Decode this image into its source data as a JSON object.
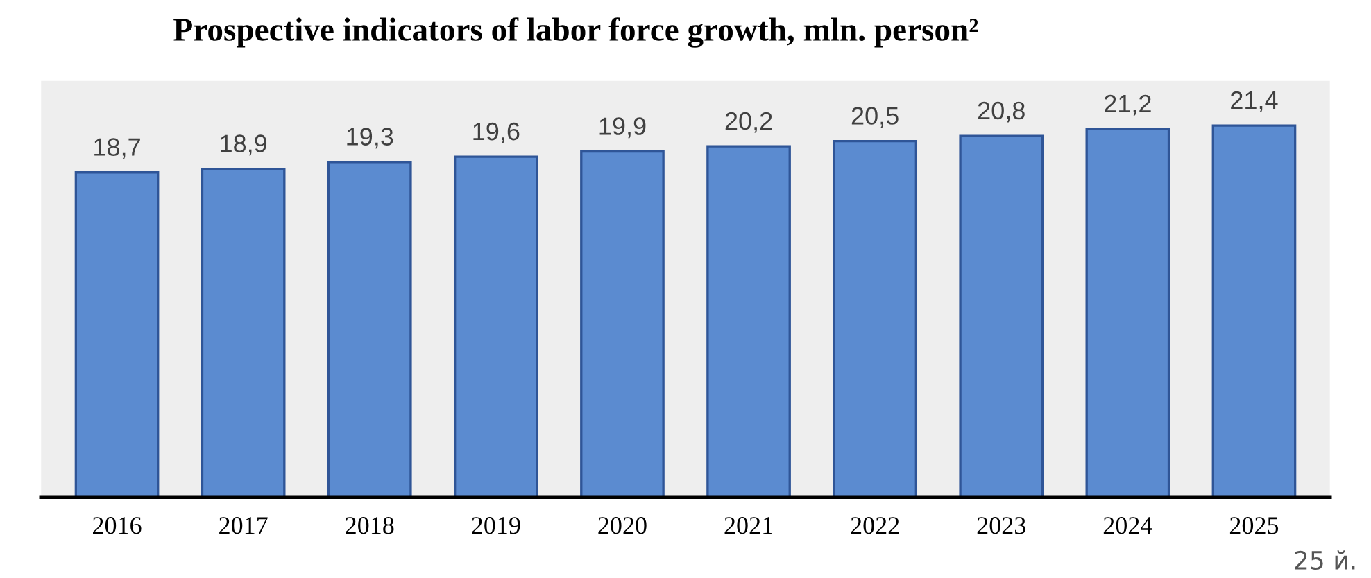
{
  "chart_data": {
    "type": "bar",
    "title": "Prospective indicators of labor force growth, mln. person²",
    "categories": [
      "2016",
      "2017",
      "2018",
      "2019",
      "2020",
      "2021",
      "2022",
      "2023",
      "2024",
      "2025"
    ],
    "values": [
      18.7,
      18.9,
      19.3,
      19.6,
      19.9,
      20.2,
      20.5,
      20.8,
      21.2,
      21.4
    ],
    "value_labels": [
      "18,7",
      "18,9",
      "19,3",
      "19,6",
      "19,9",
      "20,2",
      "20,5",
      "20,8",
      "21,2",
      "21,4"
    ],
    "color": "#5b8bd0",
    "annotations": [
      "25 й."
    ]
  }
}
